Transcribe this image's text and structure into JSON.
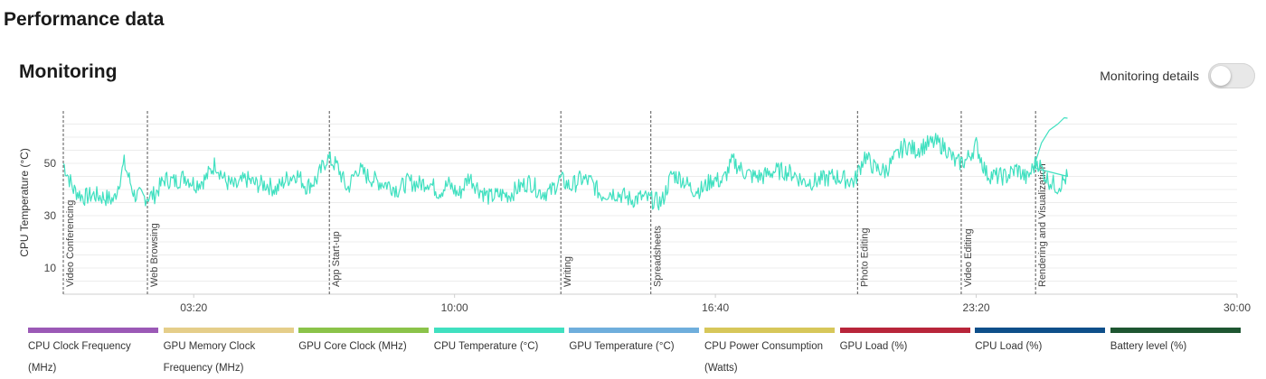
{
  "page": {
    "title": "Performance data"
  },
  "monitoring": {
    "title": "Monitoring",
    "details_label": "Monitoring details",
    "details_enabled": false
  },
  "chart_data": {
    "type": "line",
    "ylabel": "CPU Temperature (°C)",
    "yticks": [
      10,
      30,
      50
    ],
    "ylim": [
      0,
      70
    ],
    "x_ticks": [
      "03:20",
      "10:00",
      "16:40",
      "23:20",
      "30:00"
    ],
    "grid": true,
    "line_color": "#40E0C0",
    "annotations": [
      {
        "label": "Video Conferencing",
        "at": "00:00"
      },
      {
        "label": "Web Browsing",
        "at": "02:09"
      },
      {
        "label": "App Start-up",
        "at": "06:48"
      },
      {
        "label": "Writing",
        "at": "12:43"
      },
      {
        "label": "Spreadsheets",
        "at": "15:01"
      },
      {
        "label": "Photo Editing",
        "at": "20:18"
      },
      {
        "label": "Video Editing",
        "at": "22:57"
      },
      {
        "label": "Rendering and Visualization",
        "at": "24:51"
      }
    ],
    "series": [
      {
        "values": [
          50,
          40,
          37,
          38,
          37,
          36,
          50,
          38,
          37,
          38,
          44,
          43,
          45,
          42,
          44,
          50,
          43,
          41,
          44,
          42,
          42,
          40,
          44,
          46,
          41,
          44,
          52,
          49,
          40,
          48,
          45,
          43,
          42,
          40,
          43,
          42,
          43,
          39,
          42,
          38,
          45,
          40,
          37,
          38,
          38,
          41,
          43,
          39,
          39,
          44,
          41,
          44,
          43,
          38,
          39,
          38,
          36,
          37,
          36,
          35,
          46,
          44,
          40,
          40,
          44,
          43,
          51,
          47,
          45,
          45,
          47,
          47,
          46,
          43,
          43,
          44,
          45,
          44,
          43,
          53,
          48,
          47,
          52,
          57,
          55,
          57,
          58,
          56,
          50,
          51,
          57,
          46,
          45,
          45,
          48,
          44,
          51,
          44,
          41,
          45
        ]
      }
    ]
  },
  "legend": [
    {
      "label": "CPU Clock Frequency (MHz)",
      "color": "#9B59B6"
    },
    {
      "label": "GPU Memory Clock Frequency (MHz)",
      "color": "#E5CE8A"
    },
    {
      "label": "GPU Core Clock (MHz)",
      "color": "#8BC34A"
    },
    {
      "label": "CPU Temperature (°C)",
      "color": "#40E0C0"
    },
    {
      "label": "GPU Temperature (°C)",
      "color": "#6FAEDC"
    },
    {
      "label": "CPU Power Consumption (Watts)",
      "color": "#D7C75A"
    },
    {
      "label": "GPU Load (%)",
      "color": "#B8253A"
    },
    {
      "label": "CPU Load (%)",
      "color": "#0E4F8A"
    },
    {
      "label": "Battery level (%)",
      "color": "#1E5631"
    }
  ]
}
